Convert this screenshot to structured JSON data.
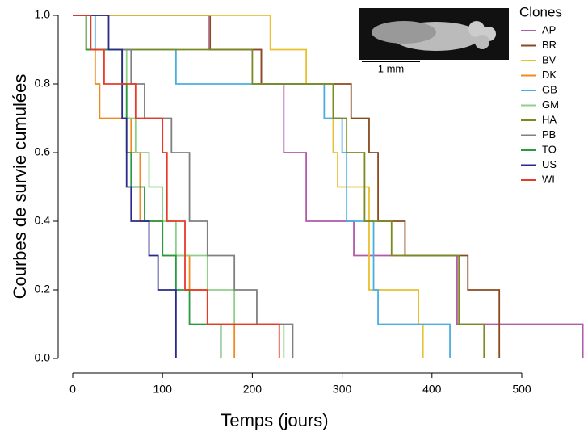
{
  "chart_data": {
    "type": "step",
    "xlabel": "Temps (jours)",
    "ylabel": "Courbes de survie cumulées",
    "legend_title": "Clones",
    "legend": "upper right",
    "inset_label": "1 mm",
    "xlim": [
      0,
      569
    ],
    "ylim": [
      0,
      1
    ],
    "xticks": [
      0,
      100,
      200,
      300,
      400,
      500
    ],
    "yticks": [
      {
        "value": 0,
        "label": "0.0"
      },
      0.2,
      0.4,
      0.6,
      0.8,
      {
        "value": 1,
        "label": "1.0"
      }
    ],
    "series": [
      {
        "name": "AP",
        "color": "#b05aa8",
        "x": [
          0,
          151,
          210,
          235,
          260,
          313,
          428,
          568
        ],
        "values": [
          1,
          0.9,
          0.8,
          0.6,
          0.4,
          0.3,
          0.1,
          0
        ]
      },
      {
        "name": "BR",
        "color": "#8b4a1e",
        "x": [
          0,
          153,
          210,
          310,
          330,
          340,
          370,
          440,
          475
        ],
        "values": [
          1,
          0.9,
          0.8,
          0.7,
          0.6,
          0.4,
          0.3,
          0.2,
          0
        ]
      },
      {
        "name": "BV",
        "color": "#e8c030",
        "x": [
          0,
          220,
          260,
          290,
          295,
          330,
          385,
          390
        ],
        "values": [
          1,
          0.9,
          0.8,
          0.6,
          0.5,
          0.2,
          0.1,
          0
        ]
      },
      {
        "name": "DK",
        "color": "#f08a20",
        "x": [
          0,
          15,
          25,
          30,
          65,
          75,
          100,
          130,
          150,
          180
        ],
        "values": [
          1,
          0.9,
          0.8,
          0.7,
          0.6,
          0.4,
          0.3,
          0.2,
          0.1,
          0
        ]
      },
      {
        "name": "GB",
        "color": "#4aaee0",
        "x": [
          0,
          25,
          115,
          280,
          300,
          305,
          335,
          340,
          420
        ],
        "values": [
          1,
          0.9,
          0.8,
          0.7,
          0.6,
          0.4,
          0.2,
          0.1,
          0
        ]
      },
      {
        "name": "GM",
        "color": "#8ed08a",
        "x": [
          0,
          20,
          60,
          70,
          85,
          100,
          115,
          150,
          180,
          235
        ],
        "values": [
          1,
          0.9,
          0.7,
          0.6,
          0.5,
          0.4,
          0.3,
          0.2,
          0.1,
          0
        ]
      },
      {
        "name": "HA",
        "color": "#7a8a20",
        "x": [
          0,
          15,
          200,
          290,
          305,
          325,
          355,
          430,
          458
        ],
        "values": [
          1,
          0.9,
          0.8,
          0.7,
          0.6,
          0.4,
          0.3,
          0.1,
          0
        ]
      },
      {
        "name": "PB",
        "color": "#808080",
        "x": [
          0,
          20,
          65,
          80,
          110,
          130,
          150,
          180,
          205,
          245
        ],
        "values": [
          1,
          0.9,
          0.8,
          0.7,
          0.6,
          0.4,
          0.3,
          0.2,
          0.1,
          0
        ]
      },
      {
        "name": "TO",
        "color": "#2a9a40",
        "x": [
          0,
          15,
          55,
          60,
          65,
          80,
          100,
          115,
          130,
          165
        ],
        "values": [
          1,
          0.9,
          0.8,
          0.6,
          0.5,
          0.4,
          0.3,
          0.2,
          0.1,
          0
        ]
      },
      {
        "name": "US",
        "color": "#2a2a8a",
        "x": [
          0,
          40,
          55,
          60,
          65,
          85,
          95,
          115
        ],
        "values": [
          1,
          0.9,
          0.7,
          0.5,
          0.4,
          0.3,
          0.2,
          0
        ]
      },
      {
        "name": "WI",
        "color": "#e83a2a",
        "x": [
          0,
          20,
          35,
          70,
          100,
          105,
          125,
          150,
          230
        ],
        "values": [
          1,
          0.9,
          0.8,
          0.7,
          0.6,
          0.4,
          0.2,
          0.1,
          0
        ]
      }
    ]
  }
}
